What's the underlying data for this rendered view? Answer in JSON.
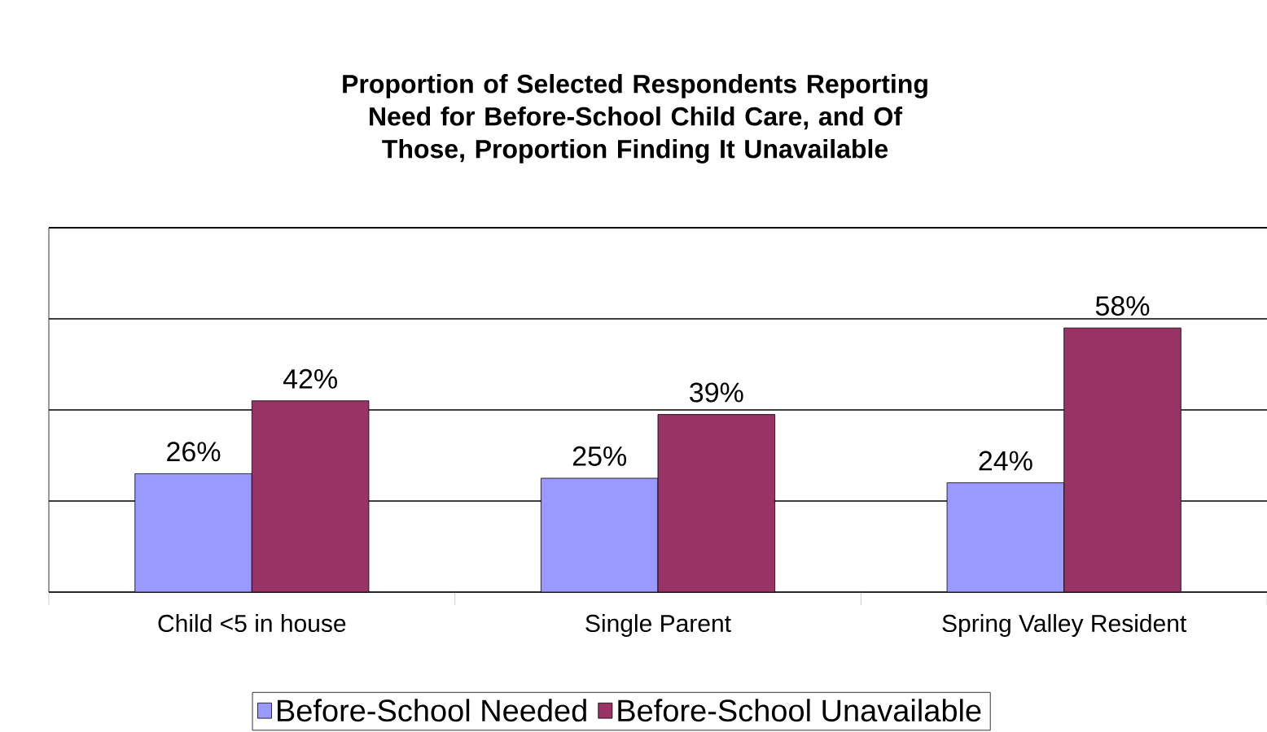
{
  "chart_data": {
    "type": "bar",
    "title": "Proportion of Selected Respondents Reporting Need for Before-School Child Care, and Of Those, Proportion Finding It Unavailable",
    "categories": [
      "Child <5 in house",
      "Single Parent",
      "Spring Valley Resident"
    ],
    "series": [
      {
        "name": "Before-School Needed",
        "color": "#9999ff",
        "values": [
          26,
          25,
          24
        ],
        "value_labels": [
          "26%",
          "25%",
          "24%"
        ]
      },
      {
        "name": "Before-School Unavailable",
        "color": "#993366",
        "values": [
          42,
          39,
          58
        ],
        "value_labels": [
          "42%",
          "39%",
          "58%"
        ]
      }
    ],
    "ylim": [
      0,
      80
    ],
    "yticks": [
      {
        "value": 0,
        "label": null
      },
      {
        "value": 20,
        "label": null
      },
      {
        "value": 40,
        "label": null
      },
      {
        "value": 60,
        "label": null
      },
      {
        "value": 80,
        "label": null
      }
    ],
    "grid": "y",
    "legend": "bottom",
    "tick_labels": "x"
  }
}
